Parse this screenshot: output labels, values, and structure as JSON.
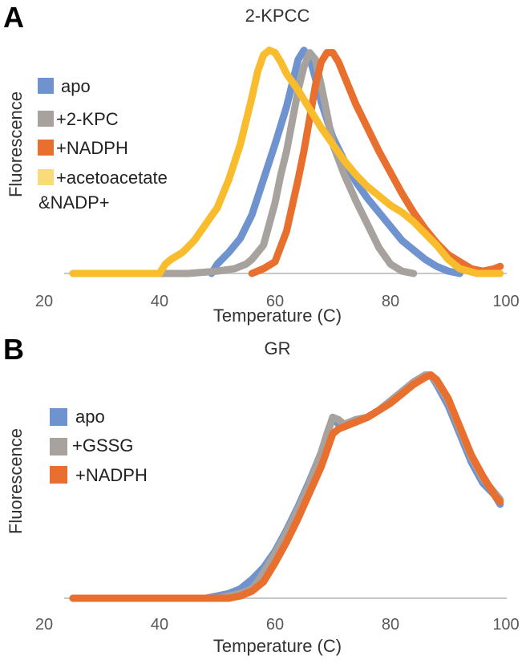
{
  "panel_letters": [
    "A",
    "B"
  ],
  "chart_data": [
    {
      "type": "line",
      "title": "2-KPCC",
      "xlabel": "Temperature (C)",
      "ylabel": "Fluorescence",
      "xlim": [
        20,
        100
      ],
      "ylim": [
        0,
        1
      ],
      "xticks": [
        "20",
        "40",
        "60",
        "80",
        "100"
      ],
      "grid": false,
      "legend": "left",
      "series": [
        {
          "name": "apo",
          "color": "#6F93CF",
          "x": [
            49,
            50,
            52,
            54,
            56,
            58,
            60,
            62,
            63,
            64,
            65,
            66,
            67,
            68,
            70,
            72,
            74,
            76,
            78,
            80,
            82,
            84,
            86,
            88,
            90,
            92
          ],
          "y": [
            0,
            0.04,
            0.09,
            0.15,
            0.25,
            0.4,
            0.55,
            0.71,
            0.81,
            0.91,
            0.95,
            0.92,
            0.83,
            0.73,
            0.58,
            0.48,
            0.39,
            0.32,
            0.26,
            0.2,
            0.14,
            0.1,
            0.06,
            0.03,
            0.01,
            0
          ]
        },
        {
          "name": "+2-KPC",
          "color": "#A8A29E",
          "x": [
            25,
            45,
            50,
            53,
            55,
            56,
            58,
            60,
            61,
            62,
            63,
            64,
            65,
            66,
            67,
            68,
            69,
            70,
            72,
            74,
            76,
            78,
            80,
            82,
            84
          ],
          "y": [
            0,
            0,
            0.01,
            0.02,
            0.04,
            0.06,
            0.12,
            0.3,
            0.42,
            0.52,
            0.65,
            0.78,
            0.88,
            0.94,
            0.91,
            0.8,
            0.68,
            0.55,
            0.42,
            0.31,
            0.21,
            0.11,
            0.04,
            0.01,
            0
          ]
        },
        {
          "name": "+NADPH",
          "color": "#E96F2E",
          "x": [
            56,
            58,
            60,
            62,
            64,
            65,
            66,
            67,
            68,
            69,
            70,
            71,
            72,
            74,
            76,
            78,
            80,
            82,
            84,
            86,
            88,
            90,
            92,
            94,
            96,
            98,
            99
          ],
          "y": [
            0,
            0.02,
            0.05,
            0.18,
            0.4,
            0.52,
            0.66,
            0.8,
            0.9,
            0.94,
            0.94,
            0.9,
            0.84,
            0.72,
            0.62,
            0.52,
            0.43,
            0.34,
            0.26,
            0.19,
            0.13,
            0.08,
            0.05,
            0.02,
            0.01,
            0.02,
            0.03
          ]
        },
        {
          "name": "+acetoacetate &NADP+",
          "color": "#F9BC2C",
          "x": [
            25,
            38,
            40,
            41,
            42,
            44,
            46,
            48,
            50,
            52,
            54,
            56,
            57,
            58,
            59,
            60,
            61,
            62,
            64,
            66,
            68,
            70,
            72,
            74,
            76,
            78,
            80,
            82,
            84,
            86,
            88,
            90,
            92,
            95,
            99
          ],
          "y": [
            0,
            0,
            0,
            0.04,
            0.06,
            0.09,
            0.14,
            0.21,
            0.28,
            0.4,
            0.55,
            0.75,
            0.86,
            0.93,
            0.95,
            0.94,
            0.9,
            0.85,
            0.78,
            0.7,
            0.62,
            0.55,
            0.48,
            0.42,
            0.37,
            0.33,
            0.29,
            0.26,
            0.22,
            0.17,
            0.12,
            0.06,
            0.02,
            0,
            0
          ]
        }
      ]
    },
    {
      "type": "line",
      "title": "GR",
      "xlabel": "Temperature (C)",
      "ylabel": "Fluorescence",
      "xlim": [
        20,
        100
      ],
      "ylim": [
        0,
        1
      ],
      "xticks": [
        "20",
        "40",
        "60",
        "80",
        "100"
      ],
      "grid": false,
      "legend": "left",
      "series": [
        {
          "name": "apo",
          "color": "#6F93CF",
          "x": [
            25,
            48,
            50,
            52,
            54,
            56,
            58,
            60,
            62,
            64,
            66,
            68,
            70,
            71,
            72,
            74,
            76,
            78,
            80,
            82,
            84,
            86,
            87,
            88,
            90,
            92,
            94,
            96,
            98,
            99
          ],
          "y": [
            0,
            0,
            0.01,
            0.02,
            0.04,
            0.08,
            0.13,
            0.2,
            0.29,
            0.39,
            0.5,
            0.62,
            0.77,
            0.74,
            0.74,
            0.76,
            0.77,
            0.8,
            0.84,
            0.88,
            0.92,
            0.95,
            0.95,
            0.91,
            0.82,
            0.7,
            0.58,
            0.49,
            0.44,
            0.4
          ]
        },
        {
          "name": "+GSSG",
          "color": "#A8A29E",
          "x": [
            25,
            50,
            52,
            54,
            56,
            57,
            58,
            60,
            62,
            64,
            66,
            68,
            69,
            70,
            71,
            72,
            74,
            76,
            78,
            80,
            82,
            84,
            86,
            87,
            88,
            90,
            92,
            94,
            96,
            98,
            99
          ],
          "y": [
            0,
            0,
            0.01,
            0.02,
            0.04,
            0.07,
            0.11,
            0.19,
            0.28,
            0.38,
            0.49,
            0.62,
            0.7,
            0.77,
            0.76,
            0.74,
            0.76,
            0.77,
            0.8,
            0.84,
            0.88,
            0.92,
            0.95,
            0.95,
            0.92,
            0.84,
            0.72,
            0.6,
            0.51,
            0.45,
            0.42
          ]
        },
        {
          "name": "+NADPH",
          "color": "#E96F2E",
          "x": [
            25,
            52,
            54,
            56,
            58,
            60,
            62,
            64,
            66,
            68,
            70,
            71,
            72,
            74,
            76,
            78,
            80,
            82,
            84,
            86,
            87,
            88,
            90,
            92,
            94,
            96,
            98,
            99
          ],
          "y": [
            0,
            0,
            0.01,
            0.03,
            0.07,
            0.15,
            0.24,
            0.34,
            0.45,
            0.56,
            0.7,
            0.72,
            0.73,
            0.75,
            0.77,
            0.8,
            0.83,
            0.87,
            0.91,
            0.94,
            0.95,
            0.93,
            0.85,
            0.73,
            0.61,
            0.52,
            0.44,
            0.41
          ]
        }
      ]
    }
  ]
}
